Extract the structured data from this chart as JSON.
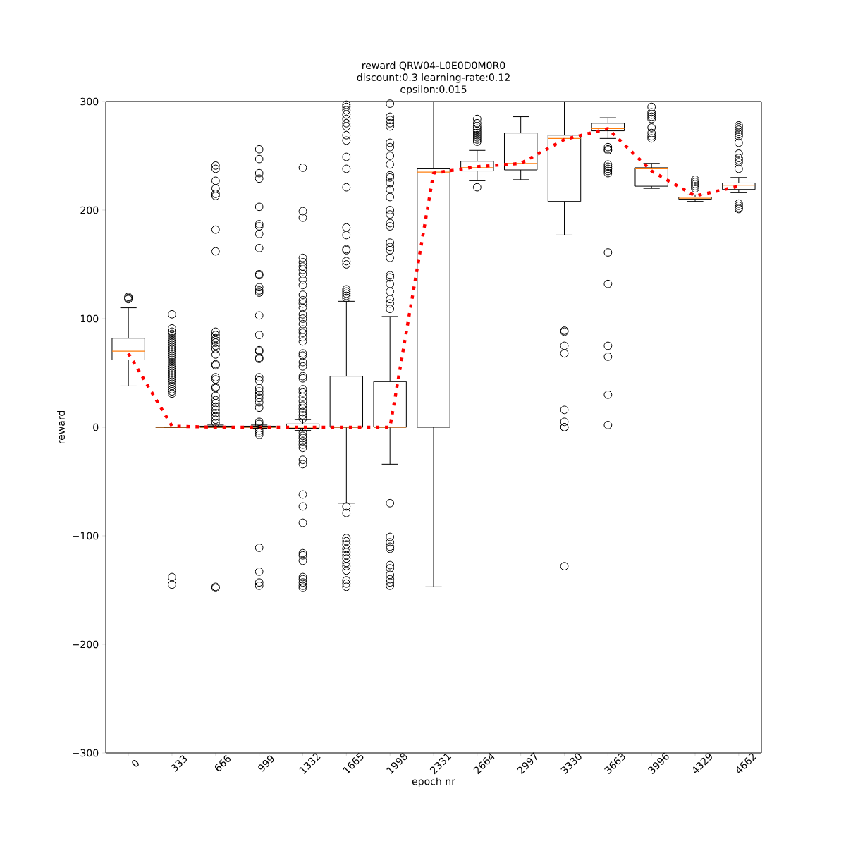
{
  "chart_data": {
    "type": "box",
    "title": "reward QRW04-L0E0D0M0R0",
    "subtitle": "discount:0.3 learning-rate:0.12",
    "annotations": [
      "epsilon:0.015"
    ],
    "xlabel": "epoch nr",
    "ylabel": "reward",
    "categories": [
      "0",
      "333",
      "666",
      "999",
      "1332",
      "1665",
      "1998",
      "2331",
      "2664",
      "2997",
      "3330",
      "3663",
      "3996",
      "4329",
      "4662"
    ],
    "ylim": [
      -300,
      300
    ],
    "yticks": [
      {
        "value": -300,
        "label": "−300"
      },
      {
        "value": -200,
        "label": "−200"
      },
      {
        "value": -100,
        "label": "−100"
      },
      0,
      100,
      200,
      300
    ],
    "boxes": [
      {
        "low": 38,
        "q1": 62,
        "median": 70,
        "q3": 82,
        "high": 110,
        "outliers": [
          118,
          119,
          120
        ]
      },
      {
        "low": 0,
        "q1": 0,
        "median": 0,
        "q3": 0,
        "high": 0,
        "outliers": [
          104,
          91,
          88,
          86,
          84,
          82,
          80,
          78,
          76,
          74,
          72,
          70,
          68,
          66,
          64,
          62,
          60,
          58,
          56,
          54,
          52,
          50,
          48,
          46,
          44,
          42,
          40,
          38,
          35,
          33,
          31,
          -138,
          -145
        ]
      },
      {
        "low": 0,
        "q1": 0,
        "median": 0,
        "q3": 1,
        "high": 2,
        "outliers": [
          241,
          238,
          227,
          220,
          215,
          213,
          182,
          162,
          88,
          85,
          82,
          80,
          78,
          75,
          72,
          67,
          58,
          57,
          46,
          44,
          37,
          36,
          29,
          25,
          22,
          19,
          16,
          13,
          10,
          7,
          4,
          -147,
          -148
        ]
      },
      {
        "low": -1,
        "q1": 0,
        "median": 0,
        "q3": 1,
        "high": 2,
        "outliers": [
          256,
          247,
          234,
          229,
          203,
          187,
          185,
          178,
          165,
          141,
          140,
          129,
          126,
          124,
          103,
          85,
          71,
          70,
          64,
          63,
          46,
          43,
          36,
          33,
          30,
          27,
          23,
          18,
          5,
          3,
          -3,
          -5,
          -7,
          -111,
          -133,
          -143,
          -146
        ]
      },
      {
        "low": -3,
        "q1": -1,
        "median": 0,
        "q3": 3,
        "high": 7,
        "outliers": [
          239,
          199,
          193,
          156,
          152,
          148,
          145,
          141,
          136,
          131,
          122,
          117,
          114,
          110,
          104,
          100,
          95,
          90,
          87,
          83,
          79,
          68,
          66,
          60,
          56,
          47,
          45,
          35,
          32,
          28,
          24,
          20,
          17,
          14,
          11,
          8,
          -5,
          -8,
          -10,
          -13,
          -16,
          -19,
          -30,
          -34,
          -62,
          -73,
          -88,
          -116,
          -118,
          -123,
          -138,
          -140,
          -143,
          -146,
          -148
        ]
      },
      {
        "low": -70,
        "q1": 0,
        "median": 0,
        "q3": 47,
        "high": 116,
        "outliers": [
          297,
          295,
          292,
          288,
          284,
          280,
          277,
          269,
          264,
          249,
          238,
          221,
          184,
          177,
          164,
          163,
          153,
          150,
          127,
          125,
          123,
          121,
          119,
          -73,
          -79,
          -102,
          -105,
          -108,
          -112,
          -115,
          -118,
          -121,
          -125,
          -128,
          -132,
          -141,
          -144,
          -147
        ]
      },
      {
        "low": -34,
        "q1": 0,
        "median": 0,
        "q3": 42,
        "high": 102,
        "outliers": [
          298,
          286,
          283,
          280,
          277,
          262,
          258,
          250,
          242,
          232,
          230,
          225,
          219,
          212,
          200,
          196,
          188,
          185,
          170,
          166,
          163,
          156,
          140,
          138,
          132,
          125,
          118,
          114,
          109,
          -70,
          -101,
          -106,
          -110,
          -112,
          -127,
          -130,
          -136,
          -140,
          -143,
          -146
        ]
      },
      {
        "low": -147,
        "q1": 0,
        "median": 235,
        "q3": 238,
        "high": 300
      },
      {
        "low": 227,
        "q1": 236,
        "median": 239,
        "q3": 245,
        "high": 255,
        "outliers": [
          284,
          280,
          277,
          275,
          273,
          271,
          269,
          267,
          265,
          263,
          221
        ]
      },
      {
        "low": 228,
        "q1": 237,
        "median": 243,
        "q3": 271,
        "high": 286
      },
      {
        "low": 177,
        "q1": 208,
        "median": 266,
        "q3": 269,
        "high": 300,
        "outliers": [
          89,
          88,
          75,
          68,
          16,
          5,
          0,
          0,
          -128
        ]
      },
      {
        "low": 266,
        "q1": 273,
        "median": 275,
        "q3": 280,
        "high": 285,
        "outliers": [
          258,
          256,
          255,
          242,
          240,
          238,
          236,
          234,
          161,
          132,
          75,
          65,
          30,
          2
        ]
      },
      {
        "low": 220,
        "q1": 222,
        "median": 238,
        "q3": 239,
        "high": 243,
        "outliers": [
          295,
          290,
          288,
          286,
          284,
          276,
          271,
          268,
          266
        ]
      },
      {
        "low": 208,
        "q1": 210,
        "median": 211,
        "q3": 212,
        "high": 214,
        "outliers": [
          228,
          226,
          224,
          222,
          220
        ]
      },
      {
        "low": 216,
        "q1": 219,
        "median": 223,
        "q3": 225,
        "high": 230,
        "outliers": [
          278,
          276,
          274,
          272,
          270,
          268,
          262,
          252,
          248,
          246,
          244,
          238,
          206,
          204,
          202,
          201
        ]
      }
    ],
    "series": [
      {
        "type": "line",
        "color": "#ff0000",
        "line_style": "dotted",
        "values": [
          68,
          1,
          0,
          0,
          0,
          0,
          0,
          234,
          240,
          243,
          265,
          275,
          236,
          213,
          222
        ]
      }
    ]
  }
}
